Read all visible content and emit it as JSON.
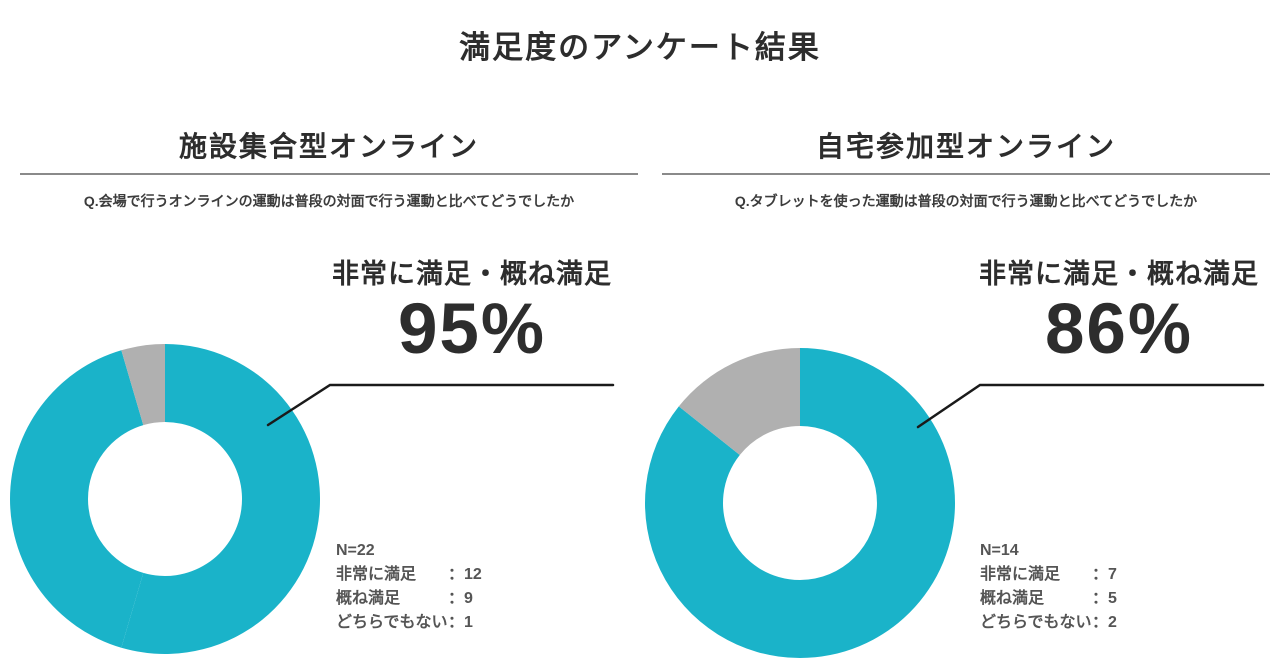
{
  "page": {
    "title": "満足度のアンケート結果",
    "colors": {
      "background": "#ffffff",
      "accent": "#1ab3c9",
      "neutral": "#b0b0b0",
      "leader_line": "#1a1a1a",
      "rule": "#8a8a8a",
      "heading_text": "#2d2d2d",
      "stats_text": "#555555"
    }
  },
  "ui": {
    "colon": "："
  },
  "panels": [
    {
      "heading": "施設集合型オンライン",
      "question": "Q.会場で行うオンラインの運動は普段の対面で行う運動と比べてどうでしたか",
      "callout_label": "非常に満足・概ね満足",
      "callout_value": "95%",
      "n_label": "N=22",
      "stats": [
        {
          "label": "非常に満足",
          "value": "12"
        },
        {
          "label": "概ね満足",
          "value": "9"
        },
        {
          "label": "どちらでもない",
          "value": "1"
        }
      ]
    },
    {
      "heading": "自宅参加型オンライン",
      "question": "Q.タブレットを使った運動は普段の対面で行う運動と比べてどうでしたか",
      "callout_label": "非常に満足・概ね満足",
      "callout_value": "86%",
      "n_label": "N=14",
      "stats": [
        {
          "label": "非常に満足",
          "value": "7"
        },
        {
          "label": "概ね満足",
          "value": "5"
        },
        {
          "label": "どちらでもない",
          "value": "2"
        }
      ]
    }
  ],
  "chart_data": [
    {
      "type": "pie",
      "subtype": "donut",
      "title": "施設集合型オンライン",
      "question": "Q.会場で行うオンラインの運動は普段の対面で行う運動と比べてどうでしたか",
      "n": 22,
      "categories": [
        "非常に満足",
        "概ね満足",
        "どちらでもない"
      ],
      "values": [
        12,
        9,
        1
      ],
      "colors": [
        "#1ab3c9",
        "#1ab3c9",
        "#b0b0b0"
      ],
      "start_angle": "top",
      "direction": "clockwise",
      "inner_radius_ratio": 0.5,
      "annotation": {
        "label": "非常に満足・概ね満足",
        "percent": 95
      }
    },
    {
      "type": "pie",
      "subtype": "donut",
      "title": "自宅参加型オンライン",
      "question": "Q.タブレットを使った運動は普段の対面で行う運動と比べてどうでしたか",
      "n": 14,
      "categories": [
        "非常に満足",
        "概ね満足",
        "どちらでもない"
      ],
      "values": [
        7,
        5,
        2
      ],
      "colors": [
        "#1ab3c9",
        "#1ab3c9",
        "#b0b0b0"
      ],
      "start_angle": "top",
      "direction": "clockwise",
      "inner_radius_ratio": 0.5,
      "annotation": {
        "label": "非常に満足・概ね満足",
        "percent": 86
      }
    }
  ]
}
